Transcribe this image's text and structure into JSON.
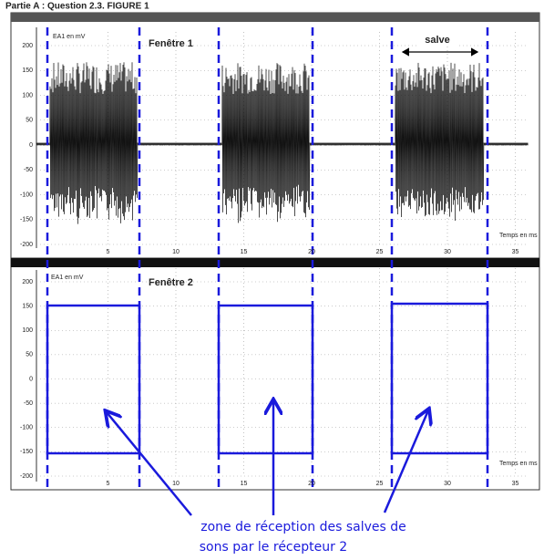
{
  "title": "Partie A : Question 2.3. FIGURE 1",
  "window_1": {
    "label": "Fenêtre 1",
    "y_label": "EA1 en mV",
    "x_label": "Temps en ms",
    "annotation": "salve",
    "yticks": [
      200,
      150,
      100,
      50,
      0,
      -50,
      -100,
      -150,
      -200
    ],
    "xticks": [
      5,
      10,
      15,
      20,
      25,
      30,
      35
    ]
  },
  "window_2": {
    "label": "Fenêtre 2",
    "y_label": "EA1 en mV",
    "x_label": "Temps en ms",
    "yticks": [
      200,
      150,
      100,
      50,
      0,
      -50,
      -100,
      -150,
      -200
    ],
    "xticks": [
      5,
      10,
      15,
      20,
      25,
      30,
      35
    ]
  },
  "caption": [
    "zone de réception des salves de",
    "sons par le récepteur 2"
  ]
}
